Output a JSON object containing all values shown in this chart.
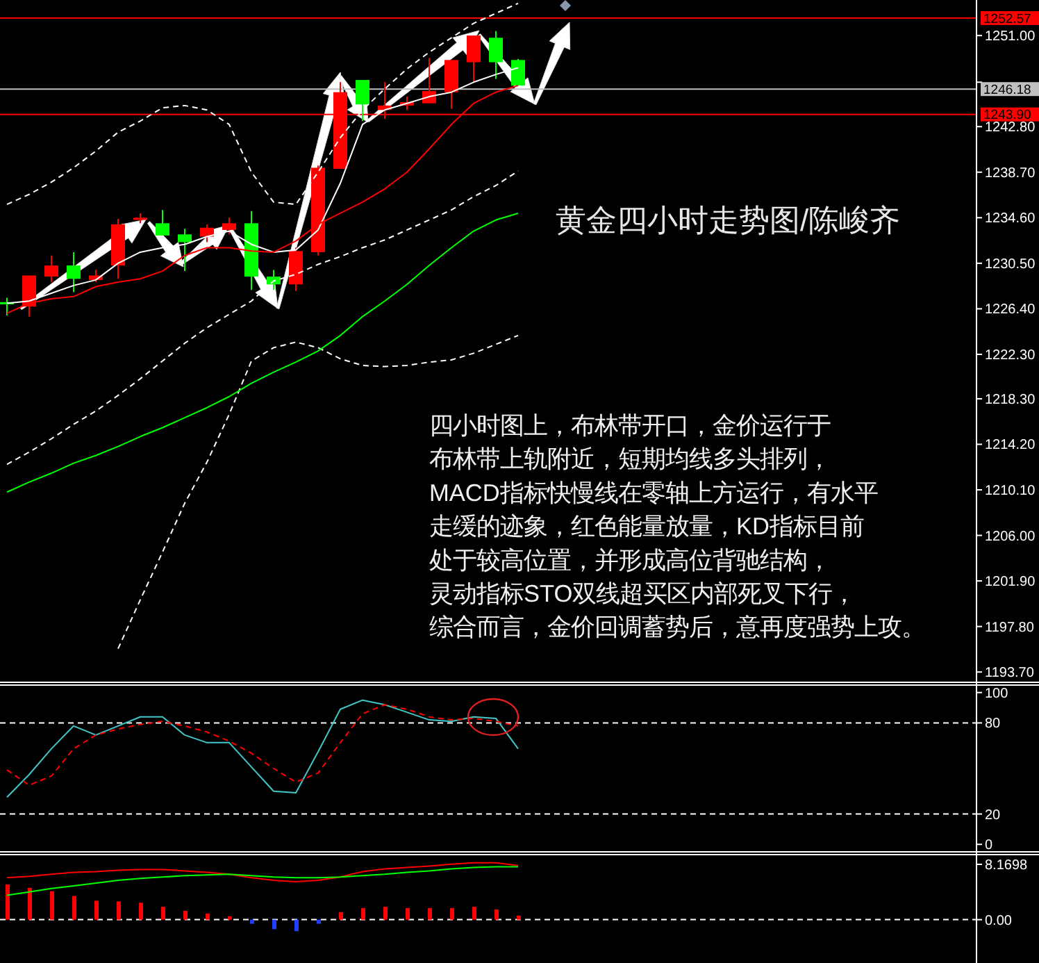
{
  "chart_data": [
    {
      "type": "candlestick",
      "title": "黄金四小时走势图/陈峻齐",
      "annotations": [
        "四小时图上，布林带开口，金价运行于",
        "布林带上轨附近，短期均线多头排列，",
        "MACD指标快慢线在零轴上方运行，有水平",
        "走缓的迹象，红色能量放量，KD指标目前",
        "处于较高位置，并形成高位背驰结构，",
        "灵动指标STO双线超买区内部死叉下行，",
        "综合而言，金价回调蓄势后，意再度强势上攻。"
      ],
      "categories": [
        null,
        null,
        null,
        null,
        null,
        null,
        null,
        null,
        null,
        null,
        null,
        null,
        null,
        null,
        null,
        null,
        null,
        null,
        null,
        null,
        null,
        null,
        null,
        null,
        null,
        null,
        null,
        null,
        null,
        null,
        null,
        null,
        null,
        null,
        null,
        null,
        null,
        null,
        null,
        null,
        null,
        null,
        null,
        null
      ],
      "ohlc": [
        [
          1227.0,
          1227.4,
          1225.8,
          1226.8
        ],
        [
          1226.6,
          1229.4,
          1225.7,
          1229.4
        ],
        [
          1229.3,
          1231.2,
          1228.8,
          1230.3
        ],
        [
          1230.3,
          1231.5,
          1227.9,
          1229.1
        ],
        [
          1229.0,
          1229.9,
          1228.8,
          1229.4
        ],
        [
          1230.3,
          1234.5,
          1229.1,
          1234.0
        ],
        [
          1234.4,
          1235.0,
          1234.1,
          1234.6
        ],
        [
          1234.1,
          1235.3,
          1233.0,
          1233.0
        ],
        [
          1233.1,
          1233.6,
          1229.8,
          1232.4
        ],
        [
          1232.9,
          1234.0,
          1232.4,
          1233.7
        ],
        [
          1233.5,
          1234.6,
          1233.1,
          1234.1
        ],
        [
          1234.1,
          1235.2,
          1228.1,
          1229.3
        ],
        [
          1229.3,
          1229.9,
          1228.1,
          1228.6
        ],
        [
          1228.6,
          1231.9,
          1228.0,
          1231.6
        ],
        [
          1231.5,
          1239.3,
          1231.2,
          1239.1
        ],
        [
          1239.0,
          1246.8,
          1239.0,
          1245.9
        ],
        [
          1247.0,
          1247.0,
          1243.3,
          1244.8
        ],
        [
          1244.3,
          1246.8,
          1243.5,
          1244.7
        ],
        [
          1244.7,
          1245.5,
          1244.3,
          1245.0
        ],
        [
          1244.9,
          1249.0,
          1244.9,
          1246.0
        ],
        [
          1245.9,
          1248.8,
          1244.4,
          1248.8
        ],
        [
          1248.6,
          1251.0,
          1246.8,
          1251.0
        ],
        [
          1250.8,
          1251.4,
          1247.1,
          1248.6
        ],
        [
          1248.8,
          1248.9,
          1246.5,
          1246.5
        ],
        null,
        null,
        null,
        null,
        null,
        null,
        null,
        null,
        null,
        null,
        null,
        null,
        null,
        null,
        null,
        null,
        null,
        null,
        null,
        null
      ],
      "colors": [
        "#00ff00",
        "#ff0000",
        "#ff0000",
        "#00ff00",
        "#ff0000",
        "#ff0000",
        "#ff0000",
        "#00ff00",
        "#00ff00",
        "#ff0000",
        "#ff0000",
        "#00ff00",
        "#00ff00",
        "#ff0000",
        "#ff0000",
        "#ff0000",
        "#00ff00",
        "#ff0000",
        "#ff0000",
        "#ff0000",
        "#ff0000",
        "#ff0000",
        "#00ff00",
        "#00ff00",
        null,
        null,
        null,
        null,
        null,
        null,
        null,
        null,
        null,
        null,
        null,
        null,
        null,
        null,
        null,
        null,
        null,
        null,
        null,
        null
      ],
      "series": [
        {
          "type": "line",
          "color": "#ffffff",
          "line_style": "dashed",
          "values": [
            1235.8,
            1236.7,
            1237.8,
            1239.1,
            1240.6,
            1242.3,
            1243.3,
            1244.5,
            1244.7,
            1244.3,
            1243.0,
            1238.7,
            1236.0,
            1235.8,
            1238.7,
            1241.8,
            1244.3,
            1246.2,
            1248.0,
            1249.5,
            1250.8,
            1252.1,
            1253.0,
            1253.9,
            null,
            null,
            null,
            null,
            null,
            null,
            null,
            null,
            null,
            null,
            null,
            null,
            null,
            null,
            null,
            null,
            null,
            null,
            null,
            null
          ]
        },
        {
          "type": "line",
          "color": "#ffffff",
          "line_style": "dashed",
          "values": [
            1212.4,
            1213.5,
            1214.7,
            1216.0,
            1217.2,
            1218.6,
            1220.1,
            1221.7,
            1223.3,
            1224.7,
            1225.9,
            1227.1,
            1228.9,
            1229.5,
            1230.4,
            1231.1,
            1231.9,
            1232.6,
            1233.5,
            1234.4,
            1235.3,
            1236.5,
            1237.5,
            1238.8,
            null,
            null,
            null,
            null,
            null,
            null,
            null,
            null,
            null,
            null,
            null,
            null,
            null,
            null,
            null,
            null,
            null,
            null,
            null,
            null
          ]
        },
        {
          "type": "line",
          "color": "#ffffff",
          "line_style": "dashed",
          "values": [
            null,
            null,
            null,
            null,
            null,
            1195.8,
            1200.2,
            1204.5,
            1208.9,
            1212.6,
            1216.9,
            1221.7,
            1222.9,
            1223.4,
            1222.9,
            1221.9,
            1221.3,
            1221.2,
            1221.3,
            1221.6,
            1221.8,
            1222.4,
            1223.2,
            1224.0,
            null,
            null,
            null,
            null,
            null,
            null,
            null,
            null,
            null,
            null,
            null,
            null,
            null,
            null,
            null,
            null,
            null,
            null,
            null,
            null
          ]
        },
        {
          "type": "line",
          "color": "#ffffff",
          "line_style": "solid",
          "values": [
            1226.9,
            1227.1,
            1227.8,
            1228.5,
            1229.0,
            1230.5,
            1231.5,
            1231.9,
            1232.2,
            1232.9,
            1233.4,
            1232.2,
            1231.5,
            1231.7,
            1233.5,
            1237.7,
            1243.0,
            1244.3,
            1244.9,
            1245.5,
            1245.9,
            1246.8,
            1247.5,
            1248.1,
            null,
            null,
            null,
            null,
            null,
            null,
            null,
            null,
            null,
            null,
            null,
            null,
            null,
            null,
            null,
            null,
            null,
            null,
            null,
            null
          ]
        },
        {
          "type": "line",
          "color": "#ff0000",
          "line_style": "solid",
          "values": [
            1226.0,
            1226.9,
            1227.3,
            1227.5,
            1228.4,
            1228.8,
            1229.1,
            1229.8,
            1231.2,
            1231.9,
            1231.9,
            1231.6,
            1231.5,
            1232.5,
            1234.0,
            1235.0,
            1236.0,
            1237.2,
            1238.7,
            1240.8,
            1243.0,
            1244.9,
            1245.9,
            1246.5,
            null,
            null,
            null,
            null,
            null,
            null,
            null,
            null,
            null,
            null,
            null,
            null,
            null,
            null,
            null,
            null,
            null,
            null,
            null,
            null
          ]
        },
        {
          "type": "line",
          "color": "#00ff00",
          "line_style": "solid",
          "values": [
            1209.9,
            1210.8,
            1211.6,
            1212.5,
            1213.2,
            1214.0,
            1214.9,
            1215.7,
            1216.6,
            1217.5,
            1218.5,
            1219.7,
            1220.7,
            1221.6,
            1222.6,
            1224.0,
            1225.7,
            1227.1,
            1228.6,
            1230.3,
            1231.9,
            1233.4,
            1234.4,
            1235.0,
            null,
            null,
            null,
            null,
            null,
            null,
            null,
            null,
            null,
            null,
            null,
            null,
            null,
            null,
            null,
            null,
            null,
            null,
            null,
            null
          ]
        }
      ],
      "ylim": [
        1192.9,
        1254.2
      ],
      "yticks": [
        {
          "value": 1193.7,
          "label": "1193.70"
        },
        {
          "value": 1197.8,
          "label": "1197.80"
        },
        {
          "value": 1201.9,
          "label": "1201.90"
        },
        {
          "value": 1206.0,
          "label": "1206.00"
        },
        {
          "value": 1210.1,
          "label": "1210.10"
        },
        {
          "value": 1214.2,
          "label": "1214.20"
        },
        {
          "value": 1218.3,
          "label": "1218.30"
        },
        {
          "value": 1222.3,
          "label": "1222.30"
        },
        {
          "value": 1226.4,
          "label": "1226.40"
        },
        {
          "value": 1230.5,
          "label": "1230.50"
        },
        {
          "value": 1234.6,
          "label": "1234.60"
        },
        {
          "value": 1238.7,
          "label": "1238.70"
        },
        {
          "value": 1242.8,
          "label": "1242.80"
        },
        {
          "value": 1246.8,
          "label": null
        },
        {
          "value": 1251.0,
          "label": "1251.00"
        }
      ],
      "ref_lines": [
        {
          "axis": "y",
          "value": 1252.57,
          "label": "1252.57",
          "color": "#ff0000"
        },
        {
          "axis": "y",
          "value": 1246.18,
          "label": "1246.18",
          "color": "#c0c0c0"
        },
        {
          "axis": "y",
          "value": 1243.9,
          "label": "1243.90",
          "color": "#ff0000"
        }
      ],
      "tick_labels": "y"
    },
    {
      "type": "line",
      "categories": [
        null,
        null,
        null,
        null,
        null,
        null,
        null,
        null,
        null,
        null,
        null,
        null,
        null,
        null,
        null,
        null,
        null,
        null,
        null,
        null,
        null,
        null,
        null,
        null,
        null,
        null,
        null,
        null,
        null,
        null,
        null,
        null,
        null,
        null,
        null,
        null,
        null,
        null,
        null,
        null,
        null,
        null,
        null,
        null
      ],
      "series": [
        {
          "color": "#40c8c8",
          "line_style": "solid",
          "values": [
            31,
            46,
            63,
            78,
            72,
            78,
            84,
            84,
            72,
            67,
            67,
            51,
            35,
            34,
            61,
            89,
            95,
            92,
            87,
            82,
            81,
            84,
            83,
            63,
            null,
            null,
            null,
            null,
            null,
            null,
            null,
            null,
            null,
            null,
            null,
            null,
            null,
            null,
            null,
            null,
            null,
            null,
            null,
            null
          ]
        },
        {
          "color": "#ff0000",
          "line_style": "dashed",
          "values": [
            49,
            39,
            45,
            63,
            72,
            76,
            79,
            81,
            78,
            74,
            68,
            60,
            50,
            41,
            47,
            67,
            86,
            92,
            89,
            84,
            82,
            83,
            81,
            78,
            null,
            null,
            null,
            null,
            null,
            null,
            null,
            null,
            null,
            null,
            null,
            null,
            null,
            null,
            null,
            null,
            null,
            null,
            null,
            null
          ]
        }
      ],
      "ylim": [
        -4,
        104
      ],
      "yticks": [
        0,
        20,
        80,
        100
      ],
      "ref_lines": [
        {
          "axis": "y",
          "value": 80,
          "color": "#ffffff",
          "line_style": "dashed"
        },
        {
          "axis": "y",
          "value": 20,
          "color": "#ffffff",
          "line_style": "dashed"
        }
      ],
      "tick_labels": "y"
    },
    {
      "type": "bar",
      "categories": [
        null,
        null,
        null,
        null,
        null,
        null,
        null,
        null,
        null,
        null,
        null,
        null,
        null,
        null,
        null,
        null,
        null,
        null,
        null,
        null,
        null,
        null,
        null,
        null,
        null,
        null,
        null,
        null,
        null,
        null,
        null,
        null,
        null,
        null,
        null,
        null,
        null,
        null,
        null,
        null,
        null,
        null,
        null,
        null
      ],
      "values": [
        5.2,
        4.7,
        4.2,
        3.5,
        2.8,
        2.7,
        2.5,
        1.9,
        1.3,
        0.9,
        0.5,
        -0.6,
        -1.4,
        -1.7,
        -0.6,
        1.1,
        1.7,
        1.9,
        1.7,
        1.7,
        1.7,
        1.9,
        1.5,
        0.6,
        null,
        null,
        null,
        null,
        null,
        null,
        null,
        null,
        null,
        null,
        null,
        null,
        null,
        null,
        null,
        null,
        null,
        null,
        null,
        null
      ],
      "colors": [
        "#ff0000",
        "#ff0000",
        "#ff0000",
        "#ff0000",
        "#ff0000",
        "#ff0000",
        "#ff0000",
        "#ff0000",
        "#ff0000",
        "#ff0000",
        "#ff0000",
        "#2040ff",
        "#2040ff",
        "#2040ff",
        "#2040ff",
        "#ff0000",
        "#ff0000",
        "#ff0000",
        "#ff0000",
        "#ff0000",
        "#ff0000",
        "#ff0000",
        "#ff0000",
        "#ff0000",
        null,
        null,
        null,
        null,
        null,
        null,
        null,
        null,
        null,
        null,
        null,
        null,
        null,
        null,
        null,
        null,
        null,
        null,
        null,
        null
      ],
      "series": [
        {
          "type": "line",
          "color": "#ff0000",
          "line_style": "solid",
          "values": [
            6.2,
            6.4,
            6.7,
            7.0,
            7.1,
            7.3,
            7.4,
            7.4,
            7.2,
            7.0,
            6.7,
            6.2,
            5.8,
            5.6,
            5.8,
            6.3,
            7.1,
            7.5,
            7.7,
            7.9,
            8.2,
            8.4,
            8.4,
            8.0,
            null,
            null,
            null,
            null,
            null,
            null,
            null,
            null,
            null,
            null,
            null,
            null,
            null,
            null,
            null,
            null,
            null,
            null,
            null,
            null
          ]
        },
        {
          "type": "line",
          "color": "#00ff00",
          "line_style": "solid",
          "values": [
            3.6,
            4.1,
            4.6,
            5.0,
            5.4,
            5.8,
            6.1,
            6.3,
            6.5,
            6.6,
            6.7,
            6.5,
            6.3,
            6.2,
            6.2,
            6.3,
            6.5,
            6.7,
            7.0,
            7.2,
            7.5,
            7.7,
            7.8,
            7.8,
            null,
            null,
            null,
            null,
            null,
            null,
            null,
            null,
            null,
            null,
            null,
            null,
            null,
            null,
            null,
            null,
            null,
            null,
            null,
            null
          ]
        }
      ],
      "ylim": [
        -6.4,
        9.4
      ],
      "yticks": [
        {
          "value": 0,
          "label": "0.00"
        },
        8.1698
      ],
      "ref_lines": [
        {
          "axis": "y",
          "value": 0,
          "color": "#ffffff",
          "line_style": "dashed"
        }
      ],
      "tick_labels": "y"
    }
  ]
}
